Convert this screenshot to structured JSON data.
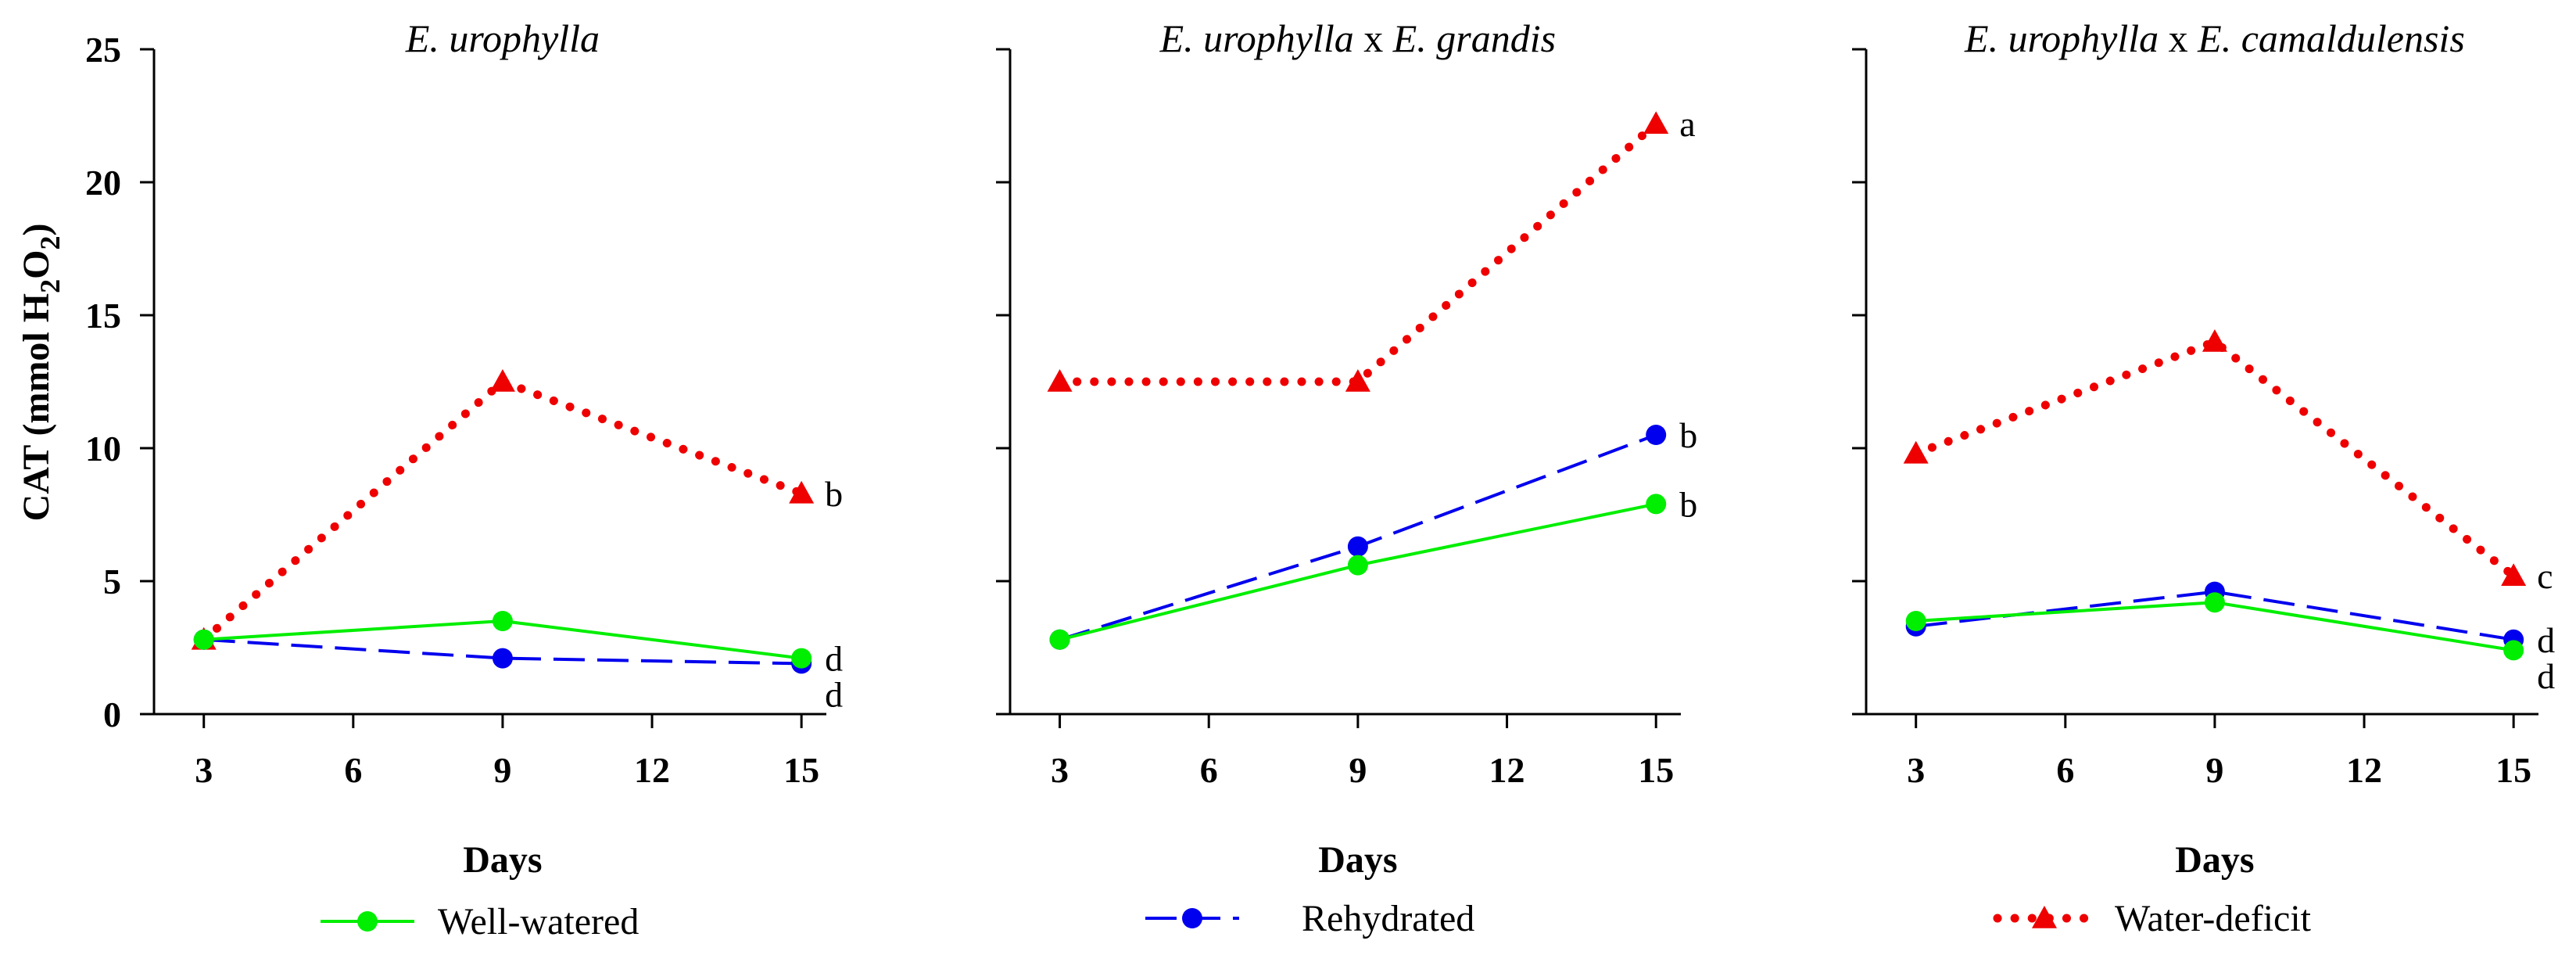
{
  "chart_data": {
    "type": "line",
    "ylabel": "CAT (mmol H2O2)",
    "ylabel_parts": {
      "prefix": "CAT (mmol H",
      "sub1": "2",
      "mid": "O",
      "sub2": "2",
      "suffix": ")"
    },
    "ylim": [
      0,
      25
    ],
    "yticks": [
      "0",
      "5",
      "10",
      "15",
      "20",
      "25"
    ],
    "ytick_values": [
      0,
      5,
      10,
      15,
      20,
      25
    ],
    "xlim": [
      2,
      15.5
    ],
    "xticks": [
      "3",
      "6",
      "9",
      "12",
      "15"
    ],
    "xtick_values": [
      3,
      6,
      9,
      12,
      15
    ],
    "xlabel": "Days",
    "x": [
      3,
      9,
      15
    ],
    "legend": [
      {
        "name": "Well-watered",
        "color": "#00ee00",
        "style": "solid",
        "marker": "circle"
      },
      {
        "name": "Rehydrated",
        "color": "#0000ee",
        "style": "dashed",
        "marker": "circle"
      },
      {
        "name": "Water-deficit",
        "color": "#ee0000",
        "style": "dotted",
        "marker": "triangle"
      }
    ],
    "panels": [
      {
        "title_parts": [
          "E. urophylla"
        ],
        "title_connector": "",
        "series": [
          {
            "name": "Well-watered",
            "values": [
              2.8,
              3.5,
              2.1
            ],
            "label": "d"
          },
          {
            "name": "Rehydrated",
            "values": [
              2.8,
              2.1,
              1.9
            ],
            "label": "d"
          },
          {
            "name": "Water-deficit",
            "values": [
              2.8,
              12.5,
              8.3
            ],
            "label": "b"
          }
        ]
      },
      {
        "title_parts": [
          "E. urophylla",
          "E. grandis"
        ],
        "title_connector": "x",
        "series": [
          {
            "name": "Well-watered",
            "values": [
              2.8,
              5.6,
              7.9
            ],
            "label": "b"
          },
          {
            "name": "Rehydrated",
            "values": [
              2.8,
              6.3,
              10.5
            ],
            "label": "b"
          },
          {
            "name": "Water-deficit",
            "values": [
              12.5,
              12.5,
              22.2
            ],
            "label": "a"
          }
        ]
      },
      {
        "title_parts": [
          "E. urophylla",
          "E. camaldulensis"
        ],
        "title_connector": "x",
        "series": [
          {
            "name": "Well-watered",
            "values": [
              3.5,
              4.2,
              2.4
            ],
            "label": "d"
          },
          {
            "name": "Rehydrated",
            "values": [
              3.3,
              4.6,
              2.8
            ],
            "label": "d"
          },
          {
            "name": "Water-deficit",
            "values": [
              9.8,
              14.0,
              5.2
            ],
            "label": "c"
          }
        ]
      }
    ]
  }
}
